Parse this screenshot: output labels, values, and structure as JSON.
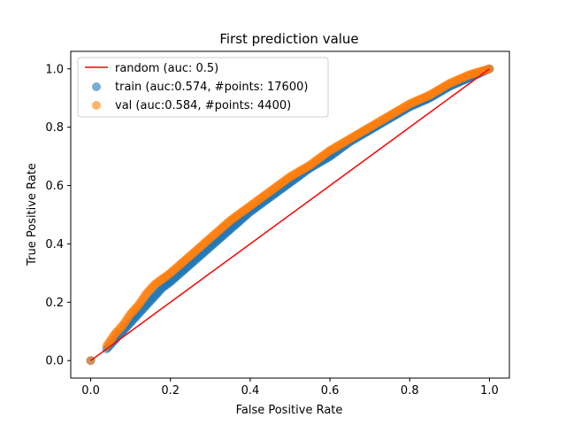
{
  "chart_data": {
    "type": "scatter",
    "title": "First prediction value",
    "xlabel": "False Positive Rate",
    "ylabel": "True Positive Rate",
    "xlim": [
      -0.05,
      1.05
    ],
    "ylim": [
      -0.06,
      1.06
    ],
    "xticks": [
      "0.0",
      "0.2",
      "0.4",
      "0.6",
      "0.8",
      "1.0"
    ],
    "yticks": [
      "0.0",
      "0.2",
      "0.4",
      "0.6",
      "0.8",
      "1.0"
    ],
    "grid": false,
    "legend_position": "top-left",
    "series": [
      {
        "name": "random (auc: 0.5)",
        "kind": "line",
        "color": "#ff0000",
        "x": [
          0.0,
          1.0
        ],
        "y": [
          0.0,
          1.0
        ]
      },
      {
        "name": "train (auc:0.574, #points: 17600)",
        "kind": "scatter",
        "color": "#1f77b4",
        "x": [
          0.0,
          0.04,
          0.06,
          0.08,
          0.1,
          0.12,
          0.14,
          0.16,
          0.18,
          0.2,
          0.25,
          0.3,
          0.35,
          0.4,
          0.45,
          0.5,
          0.55,
          0.6,
          0.65,
          0.7,
          0.75,
          0.8,
          0.85,
          0.9,
          0.95,
          1.0
        ],
        "y": [
          0.0,
          0.04,
          0.07,
          0.1,
          0.13,
          0.16,
          0.19,
          0.22,
          0.25,
          0.27,
          0.33,
          0.39,
          0.45,
          0.51,
          0.56,
          0.61,
          0.66,
          0.7,
          0.75,
          0.79,
          0.83,
          0.87,
          0.9,
          0.94,
          0.97,
          1.0
        ]
      },
      {
        "name": "val (auc:0.584, #points: 4400)",
        "kind": "scatter",
        "color": "#ff7f0e",
        "x": [
          0.0,
          0.04,
          0.06,
          0.08,
          0.1,
          0.12,
          0.14,
          0.16,
          0.18,
          0.2,
          0.25,
          0.3,
          0.35,
          0.4,
          0.45,
          0.5,
          0.55,
          0.6,
          0.65,
          0.7,
          0.75,
          0.8,
          0.85,
          0.9,
          0.95,
          1.0
        ],
        "y": [
          0.0,
          0.05,
          0.09,
          0.12,
          0.16,
          0.19,
          0.23,
          0.26,
          0.28,
          0.3,
          0.36,
          0.42,
          0.48,
          0.53,
          0.58,
          0.63,
          0.67,
          0.72,
          0.76,
          0.8,
          0.84,
          0.88,
          0.91,
          0.95,
          0.98,
          1.0
        ]
      }
    ]
  }
}
